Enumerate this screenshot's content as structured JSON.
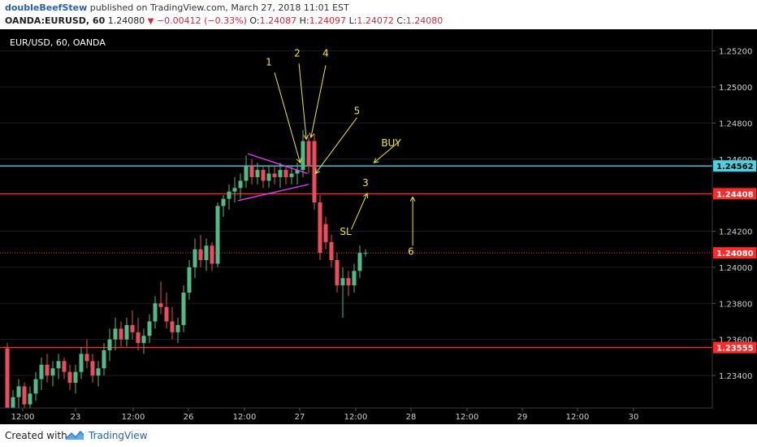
{
  "header": {
    "author": "doubleBeefStew",
    "published_text": "published on TradingView.com, March 27, 2018 11:01 EST",
    "symbol": "OANDA:EURUSD, 60",
    "last": "1.24080",
    "change": "−0.00412 (−0.33%)",
    "o_label": "O:",
    "o_value": "1.24087",
    "h_label": "H:",
    "h_value": "1.24097",
    "l_label": "L:",
    "l_value": "1.24072",
    "c_label": "C:",
    "c_value": "1.24080"
  },
  "chart_title": "EUR/USD, 60, OANDA",
  "footer": {
    "created_with": "Created with",
    "brand": "TradingView"
  },
  "colors": {
    "background": "#000000",
    "up": "#53b987",
    "down": "#eb4d5c",
    "cyan_line": "#4dd0e1",
    "red_line": "#ff2a2a",
    "annotation": "#f0e442",
    "triangle": "#e040fb"
  },
  "chart_data": {
    "type": "candlestick",
    "title": "EUR/USD, 60, OANDA",
    "ylim": [
      1.2322,
      1.2532
    ],
    "y_ticks": [
      "1.25200",
      "1.25000",
      "1.24800",
      "1.24600",
      "1.24400",
      "1.24200",
      "1.24000",
      "1.23800",
      "1.23600",
      "1.23400"
    ],
    "x_ticks": [
      "12:00",
      "23",
      "12:00",
      "26",
      "12:00",
      "27",
      "12:00",
      "28",
      "12:00",
      "29",
      "12:00",
      "30"
    ],
    "price_labels": [
      {
        "value": 1.24562,
        "text": "1.24562",
        "color": "#4dd0e1"
      },
      {
        "value": 1.24408,
        "text": "1.24408",
        "color": "#ff2a2a"
      },
      {
        "value": 1.2408,
        "text": "1.24080",
        "color": "#ff2a2a"
      },
      {
        "value": 1.23555,
        "text": "1.23555",
        "color": "#ff2a2a"
      }
    ],
    "horizontal_lines": [
      {
        "value": 1.24562,
        "color": "#4dd0e1",
        "style": "solid"
      },
      {
        "value": 1.24408,
        "color": "#ff2a2a",
        "style": "solid"
      },
      {
        "value": 1.2408,
        "color": "#ff2a2a",
        "style": "dotted"
      },
      {
        "value": 1.23555,
        "color": "#ff2a2a",
        "style": "solid"
      }
    ],
    "candles": [
      [
        1.2355,
        1.2358,
        1.232,
        1.2322
      ],
      [
        1.2322,
        1.2332,
        1.2318,
        1.2328
      ],
      [
        1.2328,
        1.2338,
        1.2322,
        1.2334
      ],
      [
        1.2334,
        1.2336,
        1.232,
        1.2324
      ],
      [
        1.2324,
        1.2334,
        1.232,
        1.233
      ],
      [
        1.233,
        1.2342,
        1.2326,
        1.2338
      ],
      [
        1.2338,
        1.235,
        1.2332,
        1.2346
      ],
      [
        1.2346,
        1.2352,
        1.2336,
        1.234
      ],
      [
        1.234,
        1.2348,
        1.2334,
        1.2344
      ],
      [
        1.2344,
        1.2352,
        1.2338,
        1.2348
      ],
      [
        1.2348,
        1.235,
        1.2338,
        1.2342
      ],
      [
        1.2342,
        1.2346,
        1.2332,
        1.2336
      ],
      [
        1.2336,
        1.2346,
        1.233,
        1.2342
      ],
      [
        1.2342,
        1.2356,
        1.2338,
        1.2352
      ],
      [
        1.2352,
        1.236,
        1.2344,
        1.2348
      ],
      [
        1.2348,
        1.2352,
        1.2336,
        1.234
      ],
      [
        1.234,
        1.2348,
        1.2334,
        1.2344
      ],
      [
        1.2344,
        1.2358,
        1.234,
        1.2354
      ],
      [
        1.2354,
        1.2366,
        1.2348,
        1.236
      ],
      [
        1.236,
        1.2372,
        1.2354,
        1.2366
      ],
      [
        1.2366,
        1.237,
        1.2356,
        1.236
      ],
      [
        1.236,
        1.2372,
        1.2356,
        1.2368
      ],
      [
        1.2368,
        1.2376,
        1.236,
        1.2364
      ],
      [
        1.2364,
        1.2372,
        1.2354,
        1.2358
      ],
      [
        1.2358,
        1.2366,
        1.2352,
        1.2362
      ],
      [
        1.2362,
        1.2374,
        1.2358,
        1.237
      ],
      [
        1.237,
        1.2384,
        1.2366,
        1.238
      ],
      [
        1.238,
        1.2392,
        1.2374,
        1.2378
      ],
      [
        1.2378,
        1.2386,
        1.2366,
        1.237
      ],
      [
        1.237,
        1.2378,
        1.236,
        1.2364
      ],
      [
        1.2364,
        1.2372,
        1.2358,
        1.2368
      ],
      [
        1.2368,
        1.239,
        1.2364,
        1.2386
      ],
      [
        1.2386,
        1.2404,
        1.2382,
        1.24
      ],
      [
        1.24,
        1.2416,
        1.2394,
        1.241
      ],
      [
        1.241,
        1.2418,
        1.24,
        1.2404
      ],
      [
        1.2404,
        1.2416,
        1.2398,
        1.2412
      ],
      [
        1.2412,
        1.2414,
        1.2398,
        1.2402
      ],
      [
        1.2402,
        1.2436,
        1.24,
        1.2434
      ],
      [
        1.2434,
        1.244,
        1.2428,
        1.2438
      ],
      [
        1.2438,
        1.2446,
        1.2432,
        1.2442
      ],
      [
        1.2442,
        1.245,
        1.2436,
        1.2444
      ],
      [
        1.2444,
        1.2452,
        1.2438,
        1.2448
      ],
      [
        1.2448,
        1.2462,
        1.2444,
        1.2456
      ],
      [
        1.2456,
        1.246,
        1.2446,
        1.245
      ],
      [
        1.245,
        1.2458,
        1.2446,
        1.2454
      ],
      [
        1.2454,
        1.2456,
        1.2444,
        1.2448
      ],
      [
        1.2448,
        1.2456,
        1.2444,
        1.2452
      ],
      [
        1.2452,
        1.2456,
        1.2446,
        1.245
      ],
      [
        1.245,
        1.2458,
        1.2444,
        1.2454
      ],
      [
        1.2454,
        1.2456,
        1.2446,
        1.245
      ],
      [
        1.245,
        1.2456,
        1.2446,
        1.2452
      ],
      [
        1.2452,
        1.2458,
        1.2446,
        1.2454
      ],
      [
        1.2454,
        1.2476,
        1.245,
        1.247
      ],
      [
        1.247,
        1.2472,
        1.2452,
        1.2456
      ],
      [
        1.247,
        1.2474,
        1.2432,
        1.2436
      ],
      [
        1.2436,
        1.244,
        1.2404,
        1.2408
      ],
      [
        1.2424,
        1.2428,
        1.241,
        1.2414
      ],
      [
        1.2414,
        1.2418,
        1.24,
        1.2404
      ],
      [
        1.2404,
        1.2408,
        1.2386,
        1.239
      ],
      [
        1.239,
        1.24,
        1.2372,
        1.2394
      ],
      [
        1.2394,
        1.2398,
        1.2384,
        1.239
      ],
      [
        1.239,
        1.2402,
        1.2386,
        1.2398
      ],
      [
        1.2398,
        1.2412,
        1.2394,
        1.2408
      ],
      [
        1.2408,
        1.241,
        1.2406,
        1.2408
      ]
    ],
    "annotations": {
      "labels": [
        {
          "text": "1",
          "x": 46,
          "y": 1.2512
        },
        {
          "text": "2",
          "x": 51,
          "y": 1.2517
        },
        {
          "text": "4",
          "x": 56,
          "y": 1.2517
        },
        {
          "text": "5",
          "x": 61.5,
          "y": 1.2485
        },
        {
          "text": "BUY",
          "x": 67.5,
          "y": 1.2467
        },
        {
          "text": "3",
          "x": 63,
          "y": 1.2445
        },
        {
          "text": "SL",
          "x": 59.5,
          "y": 1.2418
        },
        {
          "text": "6",
          "x": 71,
          "y": 1.2407
        }
      ],
      "arrows": [
        {
          "from": [
            47,
            1.2508
          ],
          "to": [
            51.5,
            1.2458
          ]
        },
        {
          "from": [
            51.3,
            1.2513
          ],
          "to": [
            52.6,
            1.2471
          ]
        },
        {
          "from": [
            56,
            1.2512
          ],
          "to": [
            53.4,
            1.2472
          ]
        },
        {
          "from": [
            61.5,
            1.2483
          ],
          "to": [
            54.2,
            1.2452
          ]
        },
        {
          "from": [
            69,
            1.247
          ],
          "to": [
            64.5,
            1.2458
          ]
        },
        {
          "from": [
            60.5,
            1.2421
          ],
          "to": [
            63.3,
            1.2441
          ]
        },
        {
          "from": [
            71.3,
            1.2412
          ],
          "to": [
            71.3,
            1.2439
          ]
        }
      ],
      "triangle": {
        "upper": [
          [
            42.3,
            1.2463
          ],
          [
            52.8,
            1.2452
          ]
        ],
        "lower": [
          [
            40.6,
            1.2437
          ],
          [
            53.0,
            1.2446
          ]
        ]
      }
    }
  }
}
